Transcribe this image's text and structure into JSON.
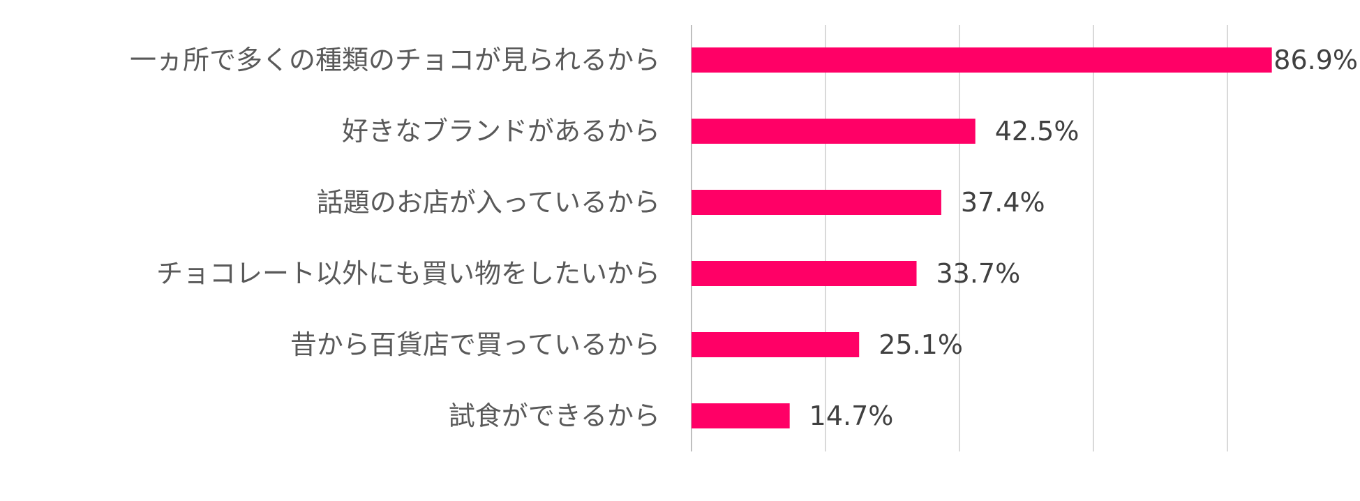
{
  "chart_data": {
    "type": "bar",
    "orientation": "horizontal",
    "categories": [
      "一ヵ所で多くの種類のチョコが見られるから",
      "好きなブランドがあるから",
      "話題のお店が入っているから",
      "チョコレート以外にも買い物をしたいから",
      "昔から百貨店で買っているから",
      "試食ができるから"
    ],
    "values": [
      86.9,
      42.5,
      37.4,
      33.7,
      25.1,
      14.7
    ],
    "value_labels": [
      "86.9%",
      "42.5%",
      "37.4%",
      "33.7%",
      "25.1%",
      "14.7%"
    ],
    "xlim": [
      0,
      100
    ],
    "grid": true,
    "bar_color": "#FF0066",
    "grid_color": "#D9D9D9",
    "label_color": "#595959",
    "value_label_color": "#404040"
  }
}
